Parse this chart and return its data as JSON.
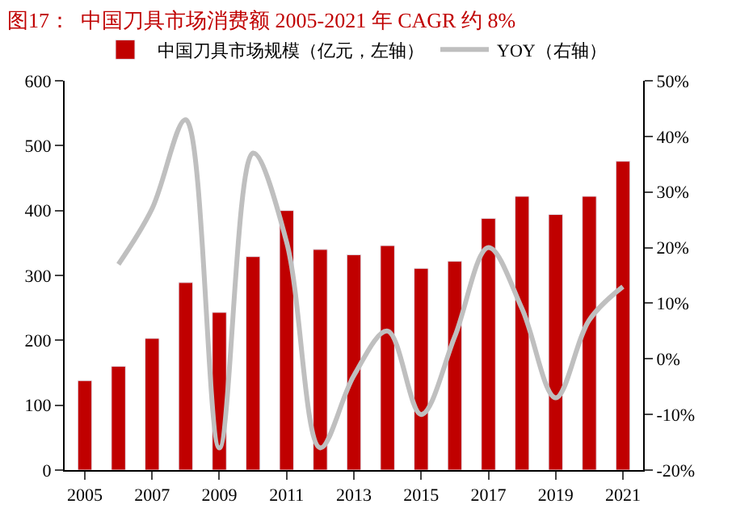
{
  "chart_data": {
    "type": "bar",
    "title": "图17：  中国刀具市场消费额 2005-2021 年 CAGR 约 8%",
    "categories": [
      "2005",
      null,
      "2007",
      null,
      "2009",
      null,
      "2011",
      null,
      "2013",
      null,
      "2015",
      null,
      "2017",
      null,
      "2019",
      null,
      "2021"
    ],
    "series": [
      {
        "name": "中国刀具市场规模（亿元，左轴）",
        "color": "#c00000",
        "values": [
          138,
          160,
          203,
          289,
          243,
          329,
          400,
          340,
          332,
          346,
          311,
          322,
          388,
          422,
          394,
          422,
          476
        ]
      },
      {
        "name": "YOY（右轴）",
        "type": "line",
        "axis": "y2",
        "color": "#bfbfbf",
        "values": [
          null,
          17,
          27,
          43,
          -16,
          37,
          21,
          -16,
          -3,
          5,
          -10,
          4,
          20,
          9,
          -7,
          7,
          13
        ]
      }
    ],
    "ylim": [
      0,
      600
    ],
    "yticks": [
      0,
      100,
      200,
      300,
      400,
      500,
      600
    ],
    "y2lim": [
      -20,
      50
    ],
    "y2ticks": [
      {
        "value": -20,
        "label": "-20%"
      },
      {
        "value": -10,
        "label": "-10%"
      },
      {
        "value": 0,
        "label": "0%"
      },
      {
        "value": 10,
        "label": "10%"
      },
      {
        "value": 20,
        "label": "20%"
      },
      {
        "value": 30,
        "label": "30%"
      },
      {
        "value": 40,
        "label": "40%"
      },
      {
        "value": 50,
        "label": "50%"
      }
    ],
    "legend": "top"
  }
}
